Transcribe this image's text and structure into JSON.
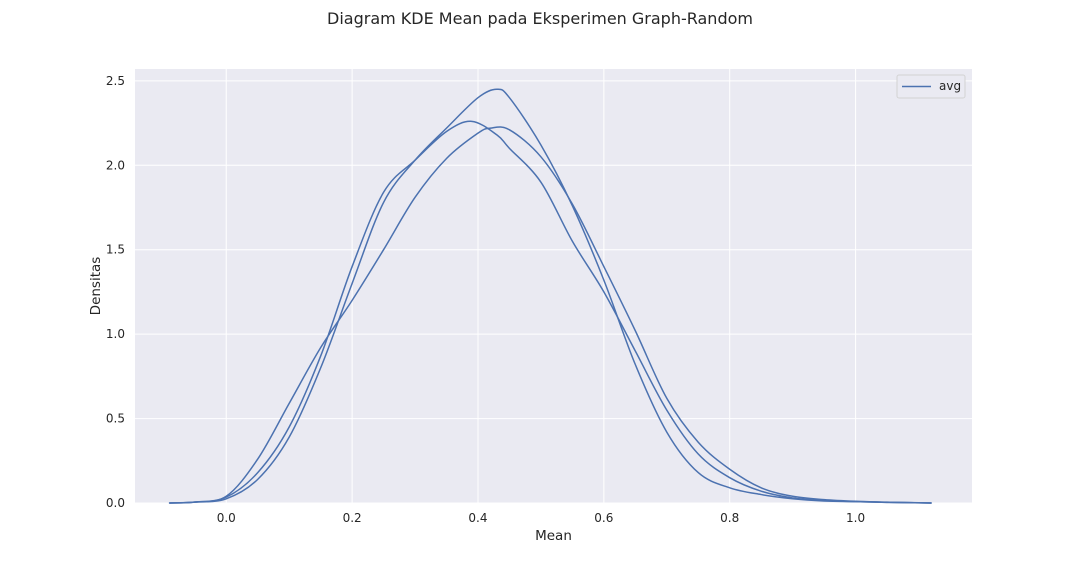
{
  "chart_data": {
    "type": "line",
    "title": "Diagram KDE Mean pada Eksperimen Graph-Random",
    "xlabel": "Mean",
    "ylabel": "Densitas",
    "xlim": [
      -0.145,
      1.185
    ],
    "ylim": [
      0,
      2.57
    ],
    "xticks": [
      0.0,
      0.2,
      0.4,
      0.6,
      0.8,
      1.0
    ],
    "xtick_labels": [
      "0.0",
      "0.2",
      "0.4",
      "0.6",
      "0.8",
      "1.0"
    ],
    "yticks": [
      0.0,
      0.5,
      1.0,
      1.5,
      2.0,
      2.5
    ],
    "ytick_labels": [
      "0.0",
      "0.5",
      "1.0",
      "1.5",
      "2.0",
      "2.5"
    ],
    "grid": true,
    "legend": {
      "position": "upper-right",
      "entries": [
        "avg"
      ]
    },
    "series": [
      {
        "name": "avg",
        "color": "#4c72b0",
        "x": [
          -0.09,
          -0.05,
          0.0,
          0.05,
          0.1,
          0.15,
          0.2,
          0.25,
          0.3,
          0.35,
          0.4,
          0.43,
          0.45,
          0.5,
          0.55,
          0.6,
          0.65,
          0.7,
          0.75,
          0.8,
          0.85,
          0.9,
          0.95,
          1.0,
          1.05,
          1.12
        ],
        "y": [
          0.0,
          0.005,
          0.025,
          0.14,
          0.39,
          0.8,
          1.3,
          1.78,
          2.03,
          2.22,
          2.4,
          2.45,
          2.4,
          2.12,
          1.76,
          1.32,
          0.82,
          0.42,
          0.18,
          0.09,
          0.05,
          0.025,
          0.012,
          0.008,
          0.004,
          0.0
        ]
      },
      {
        "name": "",
        "color": "#4c72b0",
        "x": [
          -0.09,
          -0.05,
          0.0,
          0.05,
          0.1,
          0.15,
          0.2,
          0.25,
          0.3,
          0.35,
          0.39,
          0.43,
          0.45,
          0.5,
          0.55,
          0.6,
          0.65,
          0.7,
          0.75,
          0.8,
          0.85,
          0.9,
          0.95,
          1.0,
          1.05,
          1.12
        ],
        "y": [
          0.0,
          0.005,
          0.035,
          0.18,
          0.45,
          0.87,
          1.4,
          1.84,
          2.03,
          2.2,
          2.26,
          2.18,
          2.1,
          1.9,
          1.55,
          1.25,
          0.9,
          0.55,
          0.29,
          0.15,
          0.07,
          0.03,
          0.015,
          0.008,
          0.004,
          0.0
        ]
      },
      {
        "name": "",
        "color": "#4c72b0",
        "x": [
          -0.09,
          -0.05,
          0.0,
          0.05,
          0.1,
          0.15,
          0.2,
          0.25,
          0.3,
          0.35,
          0.4,
          0.42,
          0.45,
          0.5,
          0.55,
          0.6,
          0.65,
          0.7,
          0.75,
          0.8,
          0.85,
          0.9,
          0.95,
          1.0,
          1.05,
          1.12
        ],
        "y": [
          0.0,
          0.006,
          0.04,
          0.26,
          0.59,
          0.92,
          1.2,
          1.5,
          1.81,
          2.04,
          2.19,
          2.22,
          2.21,
          2.05,
          1.77,
          1.4,
          1.02,
          0.62,
          0.36,
          0.2,
          0.09,
          0.04,
          0.02,
          0.01,
          0.005,
          0.0
        ]
      }
    ]
  }
}
